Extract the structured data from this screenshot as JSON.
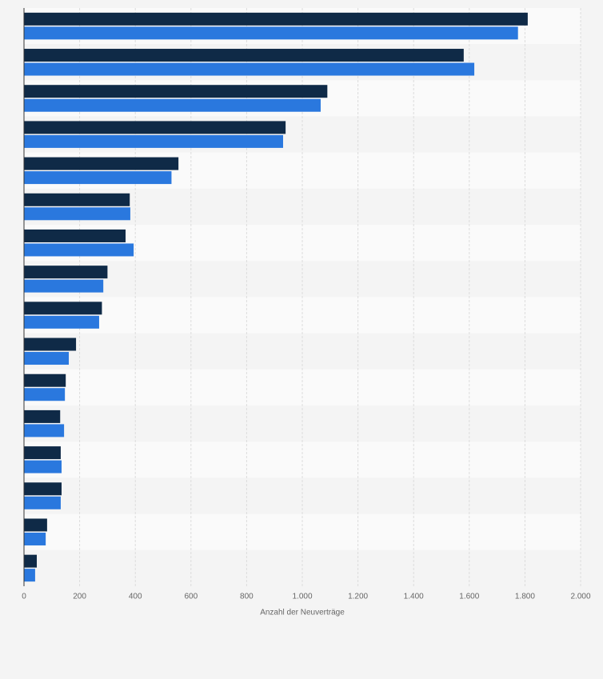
{
  "chart_data": {
    "type": "hbar",
    "categories": [
      null,
      null,
      null,
      null,
      null,
      null,
      null,
      null,
      null,
      null,
      null,
      null,
      null,
      null,
      null,
      null
    ],
    "series": [
      {
        "color": "#0f2a47",
        "values": [
          1810,
          1580,
          1090,
          940,
          555,
          380,
          365,
          300,
          280,
          187,
          150,
          130,
          132,
          135,
          83,
          46
        ]
      },
      {
        "color": "#2a78de",
        "values": [
          1775,
          1618,
          1066,
          931,
          530,
          382,
          394,
          285,
          270,
          161,
          147,
          144,
          135,
          132,
          78,
          40
        ]
      }
    ],
    "xlim": [
      0,
      2000
    ],
    "xticks": [
      0,
      200,
      400,
      600,
      800,
      {
        "value": 1000,
        "label": "1.000"
      },
      {
        "value": 1200,
        "label": "1.200"
      },
      {
        "value": 1400,
        "label": "1.400"
      },
      {
        "value": 1600,
        "label": "1.600"
      },
      {
        "value": 1800,
        "label": "1.800"
      },
      {
        "value": 2000,
        "label": "2.000"
      }
    ],
    "xlabel": "Anzahl der Neuverträge",
    "grid": true
  }
}
